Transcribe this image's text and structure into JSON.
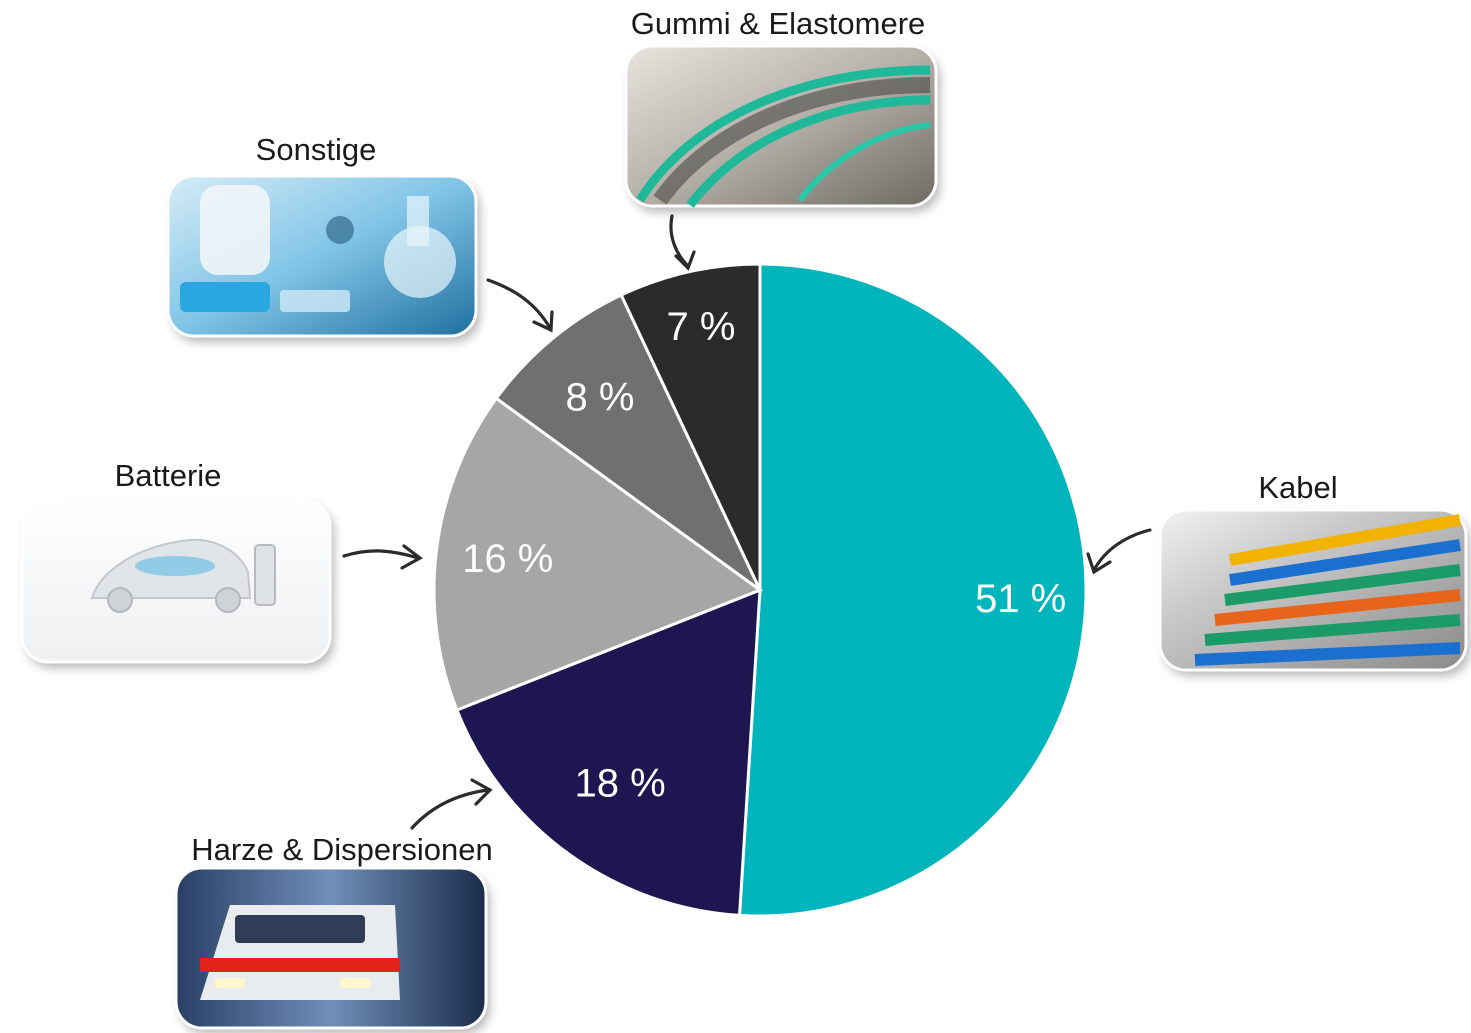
{
  "chart_data": {
    "type": "pie",
    "start_angle_deg": 0,
    "direction": "clockwise",
    "slices": [
      {
        "label": "Kabel",
        "value": 51,
        "value_label": "51 %",
        "color": "#00b5bb",
        "image_icon": "network-cable-photo"
      },
      {
        "label": "Harze & Dispersionen",
        "value": 18,
        "value_label": "18 %",
        "color": "#1e1650",
        "image_icon": "train-photo"
      },
      {
        "label": "Batterie",
        "value": 16,
        "value_label": "16 %",
        "color": "#a6a6a6",
        "image_icon": "electric-car-photo"
      },
      {
        "label": "Sonstige",
        "value": 8,
        "value_label": "8 %",
        "color": "#707070",
        "image_icon": "laboratory-photo"
      },
      {
        "label": "Gummi & Elastomere",
        "value": 7,
        "value_label": "7 %",
        "color": "#2b2b2b",
        "image_icon": "conveyor-belt-photo"
      }
    ],
    "separator_color": "#ffffff",
    "legend": "none"
  }
}
